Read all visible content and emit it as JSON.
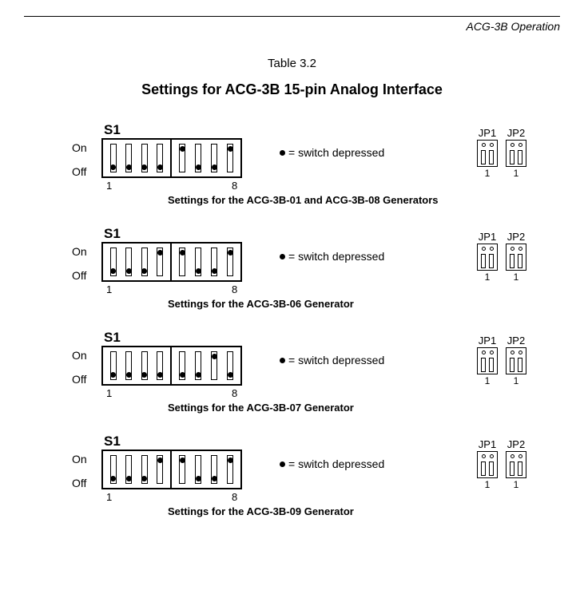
{
  "header": "ACG-3B Operation",
  "table_num": "Table 3.2",
  "title": "Settings for ACG-3B 15-pin Analog Interface",
  "labels": {
    "s1": "S1",
    "on": "On",
    "off": "Off",
    "one": "1",
    "eight": "8",
    "legend": "= switch depressed",
    "jp1": "JP1",
    "jp2": "JP2",
    "jp_num": "1"
  },
  "colors": {
    "bg": "#ffffff",
    "line": "#000000"
  },
  "configs": [
    {
      "switches": [
        "off",
        "off",
        "off",
        "off",
        "on",
        "off",
        "off",
        "on"
      ],
      "caption": "Settings for the ACG-3B-01 and ACG-3B-08 Generators"
    },
    {
      "switches": [
        "off",
        "off",
        "off",
        "on",
        "on",
        "off",
        "off",
        "on"
      ],
      "caption": "Settings for the ACG-3B-06 Generator"
    },
    {
      "switches": [
        "off",
        "off",
        "off",
        "off",
        "off",
        "off",
        "on",
        "off"
      ],
      "caption": "Settings for the ACG-3B-07 Generator"
    },
    {
      "switches": [
        "off",
        "off",
        "off",
        "on",
        "on",
        "off",
        "off",
        "on"
      ],
      "caption": "Settings for the ACG-3B-09 Generator"
    }
  ]
}
